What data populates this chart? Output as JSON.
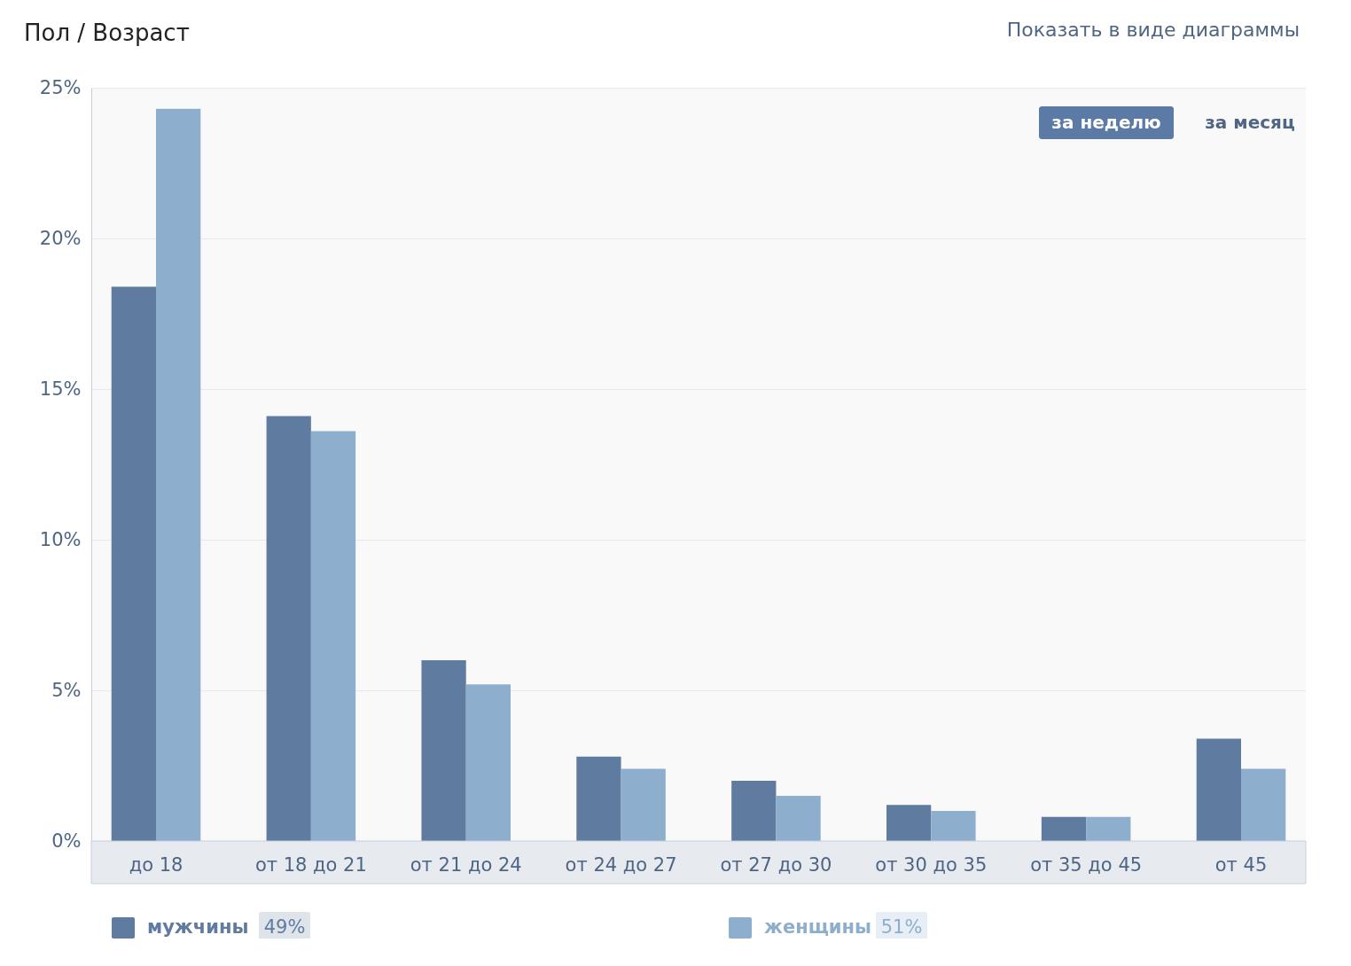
{
  "chart_data": {
    "type": "bar",
    "title": "Пол / Возраст",
    "categories": [
      "до 18",
      "от 18 до 21",
      "от 21 до 24",
      "от 24 до 27",
      "от 27 до 30",
      "от 30 до 35",
      "от 35 до 45",
      "от 45"
    ],
    "series": [
      {
        "name": "мужчины",
        "color": "#607ba0",
        "values": [
          18.4,
          14.1,
          6.0,
          2.8,
          2.0,
          1.2,
          0.8,
          3.4
        ]
      },
      {
        "name": "женщины",
        "color": "#8eaecd",
        "values": [
          24.3,
          13.6,
          5.2,
          2.4,
          1.5,
          1.0,
          0.8,
          2.4
        ]
      }
    ],
    "ylim": [
      0,
      25
    ],
    "yticks": [
      {
        "value": 0,
        "label": "0%"
      },
      {
        "value": 5,
        "label": "5%"
      },
      {
        "value": 10,
        "label": "10%"
      },
      {
        "value": 15,
        "label": "15%"
      },
      {
        "value": 20,
        "label": "20%"
      },
      {
        "value": 25,
        "label": "25%"
      }
    ],
    "grid": "y",
    "legend": "bottom",
    "annotations": [
      "за неделю",
      "за месяц",
      "Показать в виде диаграммы",
      "49%",
      "51%"
    ]
  }
}
